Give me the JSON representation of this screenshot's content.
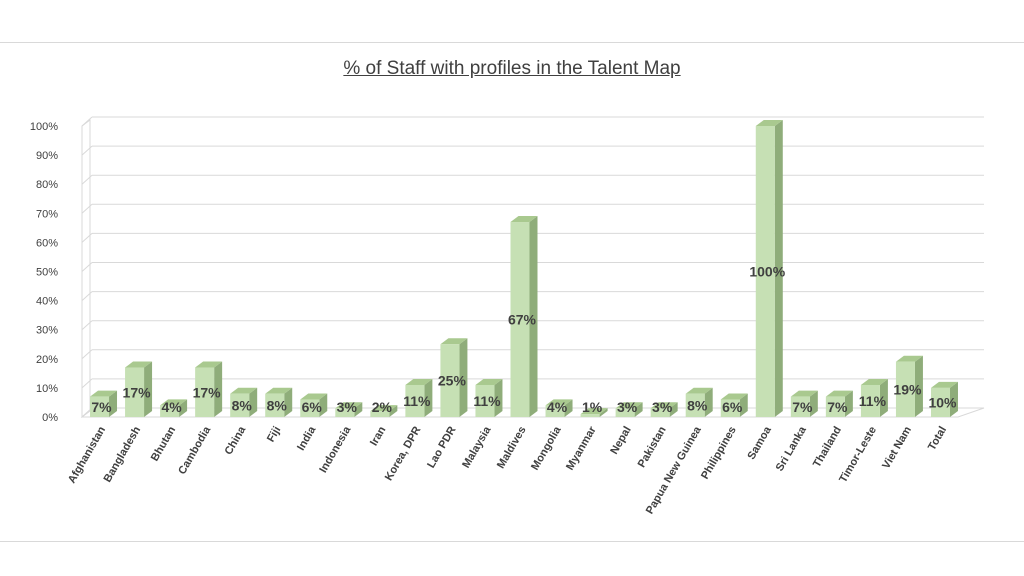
{
  "chart_data": {
    "type": "bar",
    "title": "% of Staff with profiles in the Talent Map",
    "xlabel": "",
    "ylabel": "",
    "ylim": [
      0,
      100
    ],
    "ytick_labels": [
      "0%",
      "10%",
      "20%",
      "30%",
      "40%",
      "50%",
      "60%",
      "70%",
      "80%",
      "90%",
      "100%"
    ],
    "grid": true,
    "legend": "none",
    "categories": [
      "Afghanistan",
      "Bangladesh",
      "Bhutan",
      "Cambodia",
      "China",
      "Fiji",
      "India",
      "Indonesia",
      "Iran",
      "Korea, DPR",
      "Lao PDR",
      "Malaysia",
      "Maldives",
      "Mongolia",
      "Myanmar",
      "Nepal",
      "Pakistan",
      "Papua New Guinea",
      "Philippines",
      "Samoa",
      "Sri Lanka",
      "Thailand",
      "Timor-Leste",
      "Viet Nam",
      "Total"
    ],
    "values": [
      7,
      17,
      4,
      17,
      8,
      8,
      6,
      3,
      2,
      11,
      25,
      11,
      67,
      4,
      1,
      3,
      3,
      8,
      6,
      100,
      7,
      7,
      11,
      19,
      10
    ],
    "data_labels": [
      "7%",
      "17%",
      "4%",
      "17%",
      "8%",
      "8%",
      "6%",
      "3%",
      "2%",
      "11%",
      "25%",
      "11%",
      "67%",
      "4%",
      "1%",
      "3%",
      "3%",
      "8%",
      "6%",
      "100%",
      "7%",
      "7%",
      "11%",
      "19%",
      "10%"
    ],
    "colors": {
      "bar_front": "#c6e0b4",
      "bar_side": "#8fad7a",
      "bar_top": "#a9c98f",
      "grid": "#d9d9d9",
      "text": "#404040"
    }
  }
}
